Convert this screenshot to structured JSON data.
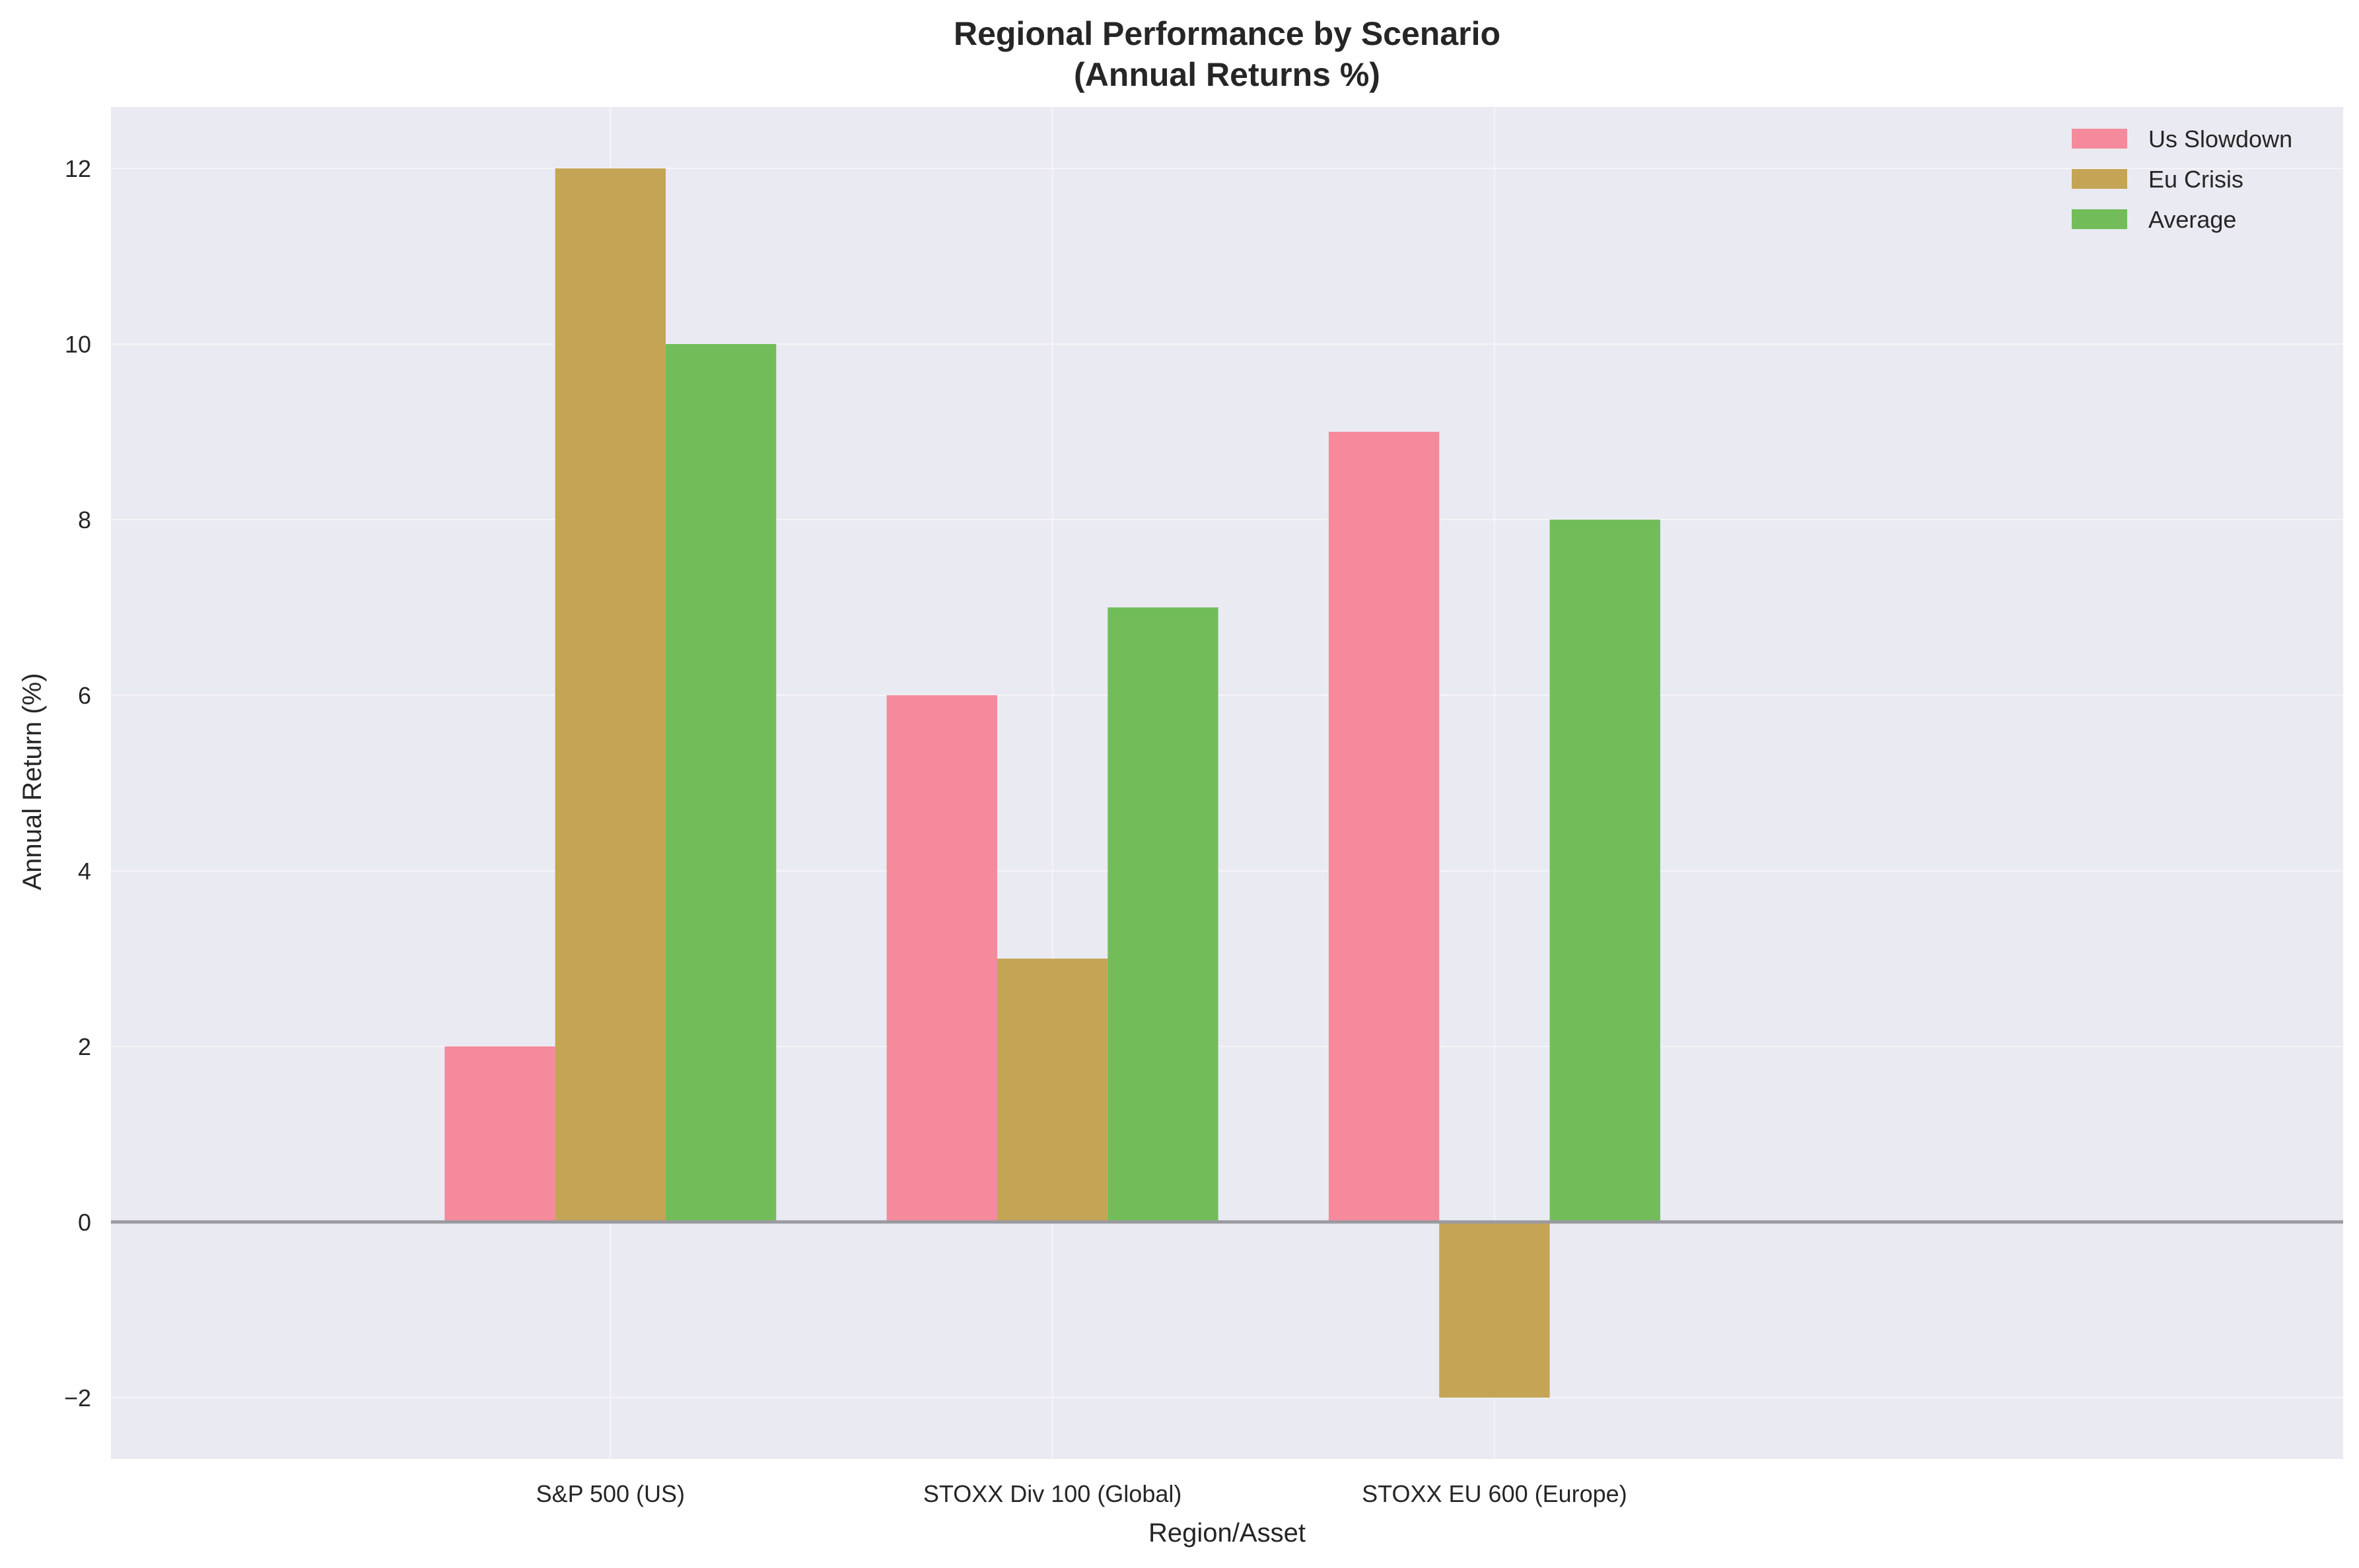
{
  "chart_data": {
    "type": "bar",
    "title": "Regional Performance by Scenario",
    "subtitle": "(Annual Returns %)",
    "xlabel": "Region/Asset",
    "ylabel": "Annual Return (%)",
    "categories": [
      "S&P 500 (US)",
      "STOXX Div 100 (Global)",
      "STOXX EU 600 (Europe)"
    ],
    "series": [
      {
        "name": "Us Slowdown",
        "values": [
          2,
          6,
          9
        ],
        "color": "#f48a9c"
      },
      {
        "name": "Eu Crisis",
        "values": [
          12,
          3,
          -2
        ],
        "color": "#c4a555"
      },
      {
        "name": "Average",
        "values": [
          10,
          7,
          8
        ],
        "color": "#72bd5a"
      }
    ],
    "ylim": [
      -2.7,
      12.7
    ],
    "yticks": [
      -2,
      0,
      2,
      4,
      6,
      8,
      10,
      12
    ],
    "ytick_labels": [
      "−2",
      "0",
      "2",
      "4",
      "6",
      "8",
      "10",
      "12"
    ],
    "grid": true,
    "legend_position": "top-right",
    "colors": {
      "plot_background": "#eaeaf2",
      "grid": "#f5f5f9",
      "zero_line": "#9a9aa0"
    }
  }
}
